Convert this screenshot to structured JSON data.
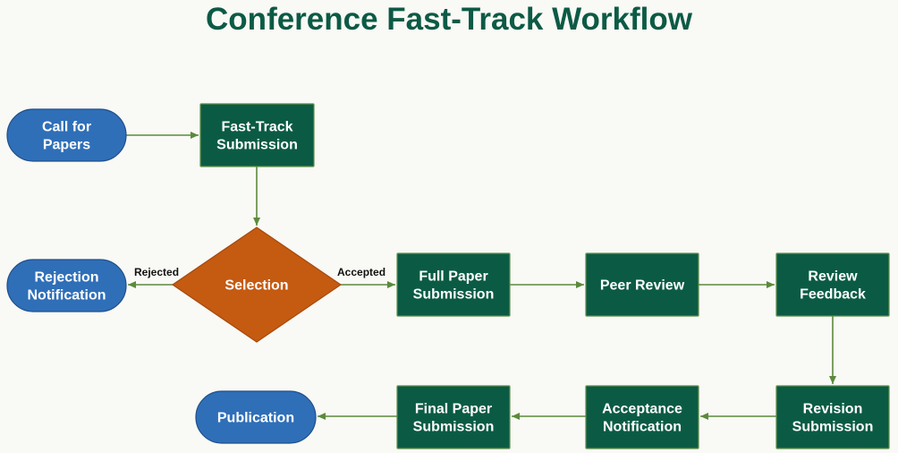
{
  "title": "Conference Fast-Track Workflow",
  "colors": {
    "title": "#0c5a45",
    "terminal_fill": "#2f6fb8",
    "terminal_stroke": "#1f4f8a",
    "process_fill": "#0b5b44",
    "process_stroke": "#5f8f4a",
    "decision_fill": "#c55a11",
    "decision_stroke": "#a54a0d",
    "edge": "#5b8a3c",
    "node_text": "#ffffff",
    "edge_label_text": "#111111",
    "background": "#f9f9f5"
  },
  "nodes": {
    "call_for_papers": {
      "type": "terminal",
      "lines": [
        "Call for",
        "Papers"
      ]
    },
    "fast_track_submission": {
      "type": "process",
      "lines": [
        "Fast-Track",
        "Submission"
      ]
    },
    "selection": {
      "type": "decision",
      "lines": [
        "Selection"
      ]
    },
    "rejection_notification": {
      "type": "terminal",
      "lines": [
        "Rejection",
        "Notification"
      ]
    },
    "full_paper_submission": {
      "type": "process",
      "lines": [
        "Full Paper",
        "Submission"
      ]
    },
    "peer_review": {
      "type": "process",
      "lines": [
        "Peer Review"
      ]
    },
    "review_feedback": {
      "type": "process",
      "lines": [
        "Review",
        "Feedback"
      ]
    },
    "revision_submission": {
      "type": "process",
      "lines": [
        "Revision",
        "Submission"
      ]
    },
    "acceptance_notification": {
      "type": "process",
      "lines": [
        "Acceptance",
        "Notification"
      ]
    },
    "final_paper_submission": {
      "type": "process",
      "lines": [
        "Final Paper",
        "Submission"
      ]
    },
    "publication": {
      "type": "terminal",
      "lines": [
        "Publication"
      ]
    }
  },
  "edges": [
    {
      "from": "call_for_papers",
      "to": "fast_track_submission",
      "label": ""
    },
    {
      "from": "fast_track_submission",
      "to": "selection",
      "label": ""
    },
    {
      "from": "selection",
      "to": "rejection_notification",
      "label": "Rejected"
    },
    {
      "from": "selection",
      "to": "full_paper_submission",
      "label": "Accepted"
    },
    {
      "from": "full_paper_submission",
      "to": "peer_review",
      "label": ""
    },
    {
      "from": "peer_review",
      "to": "review_feedback",
      "label": ""
    },
    {
      "from": "review_feedback",
      "to": "revision_submission",
      "label": ""
    },
    {
      "from": "revision_submission",
      "to": "acceptance_notification",
      "label": ""
    },
    {
      "from": "acceptance_notification",
      "to": "final_paper_submission",
      "label": ""
    },
    {
      "from": "final_paper_submission",
      "to": "publication",
      "label": ""
    }
  ]
}
